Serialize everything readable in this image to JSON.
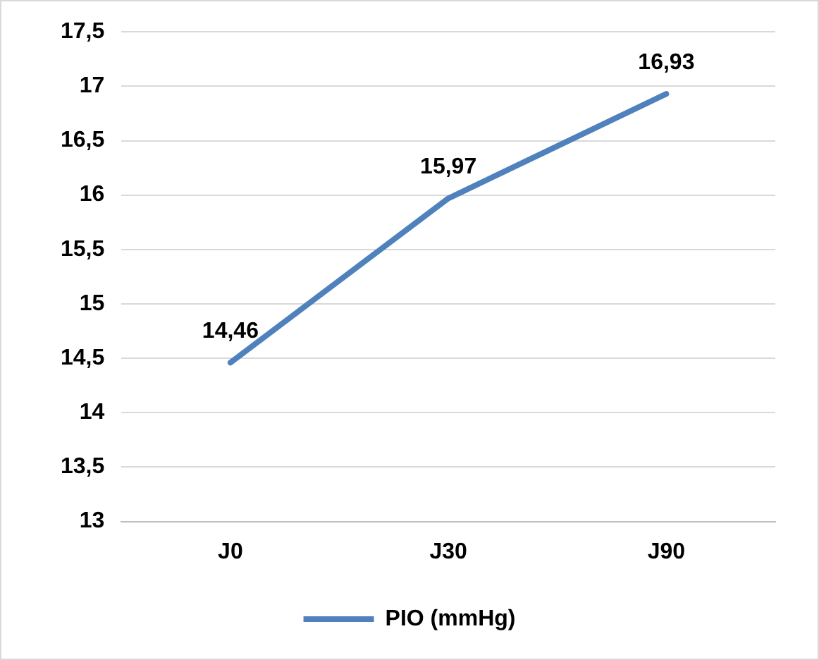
{
  "chart_data": {
    "type": "line",
    "categories": [
      "J0",
      "J30",
      "J90"
    ],
    "series": [
      {
        "name": "PIO (mmHg)",
        "color": "#4f81bd",
        "values": [
          14.46,
          15.97,
          16.93
        ],
        "value_labels": [
          "14,46",
          "15,97",
          "16,93"
        ]
      }
    ],
    "ylim": [
      13,
      17.5
    ],
    "yticks": [
      13,
      {
        "value": 13.5,
        "label": "13,5"
      },
      14,
      {
        "value": 14.5,
        "label": "14,5"
      },
      15,
      {
        "value": 15.5,
        "label": "15,5"
      },
      16,
      {
        "value": 16.5,
        "label": "16,5"
      },
      17,
      {
        "value": 17.5,
        "label": "17,5"
      }
    ],
    "grid": "y",
    "legend": "bottom",
    "marker": "none",
    "line_style": "solid"
  }
}
